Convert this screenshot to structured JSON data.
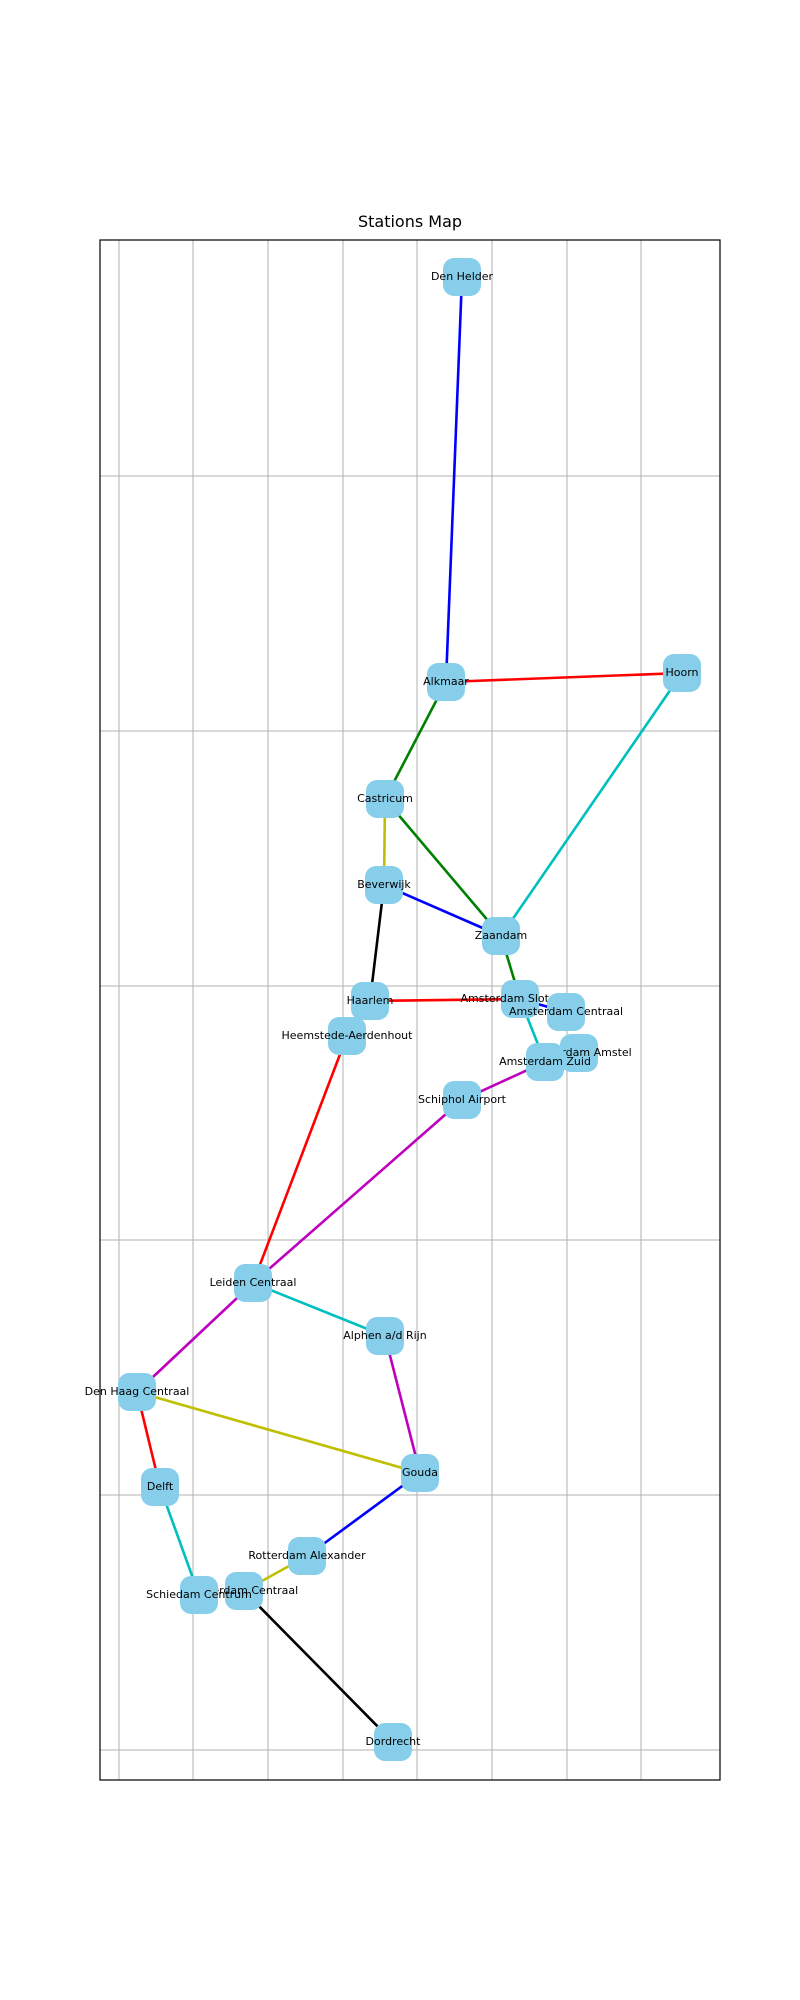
{
  "title": "Stations Map",
  "style": {
    "node_color": "#87CEEB",
    "grid": true
  },
  "line_colors": {
    "blue": "#0000FF",
    "red": "#FF0000",
    "green": "#008000",
    "cyan": "#00BFBF",
    "yellow": "#BFBF00",
    "black": "#000000",
    "magenta": "#BF00BF"
  },
  "stations": [
    {
      "id": "den_helder",
      "name": "Den Helder"
    },
    {
      "id": "alkmaar",
      "name": "Alkmaar"
    },
    {
      "id": "hoorn",
      "name": "Hoorn"
    },
    {
      "id": "castricum",
      "name": "Castricum"
    },
    {
      "id": "beverwijk",
      "name": "Beverwijk"
    },
    {
      "id": "zaandam",
      "name": "Zaandam"
    },
    {
      "id": "haarlem",
      "name": "Haarlem"
    },
    {
      "id": "ams_sloterdijk",
      "name": "Amsterdam Sloterdijk"
    },
    {
      "id": "ams_centraal",
      "name": "Amsterdam Centraal"
    },
    {
      "id": "heemstede",
      "name": "Heemstede-Aerdenhout"
    },
    {
      "id": "ams_amstel",
      "name": "Amsterdam Amstel"
    },
    {
      "id": "ams_zuid",
      "name": "Amsterdam Zuid"
    },
    {
      "id": "schiphol",
      "name": "Schiphol Airport"
    },
    {
      "id": "leiden",
      "name": "Leiden Centraal"
    },
    {
      "id": "alphen",
      "name": "Alphen a/d Rijn"
    },
    {
      "id": "den_haag",
      "name": "Den Haag Centraal"
    },
    {
      "id": "gouda",
      "name": "Gouda"
    },
    {
      "id": "delft",
      "name": "Delft"
    },
    {
      "id": "rotterdam_alexander",
      "name": "Rotterdam Alexander"
    },
    {
      "id": "rotterdam_centraal",
      "name": "Rotterdam Centraal"
    },
    {
      "id": "schiedam",
      "name": "Schiedam Centrum"
    },
    {
      "id": "dordrecht",
      "name": "Dordrecht"
    }
  ],
  "connections": [
    {
      "from": "den_helder",
      "to": "alkmaar",
      "color": "blue"
    },
    {
      "from": "alkmaar",
      "to": "hoorn",
      "color": "red"
    },
    {
      "from": "alkmaar",
      "to": "castricum",
      "color": "green"
    },
    {
      "from": "hoorn",
      "to": "zaandam",
      "color": "cyan"
    },
    {
      "from": "castricum",
      "to": "zaandam",
      "color": "green"
    },
    {
      "from": "castricum",
      "to": "beverwijk",
      "color": "yellow"
    },
    {
      "from": "beverwijk",
      "to": "zaandam",
      "color": "blue"
    },
    {
      "from": "beverwijk",
      "to": "haarlem",
      "color": "black"
    },
    {
      "from": "zaandam",
      "to": "ams_sloterdijk",
      "color": "green"
    },
    {
      "from": "haarlem",
      "to": "ams_sloterdijk",
      "color": "red"
    },
    {
      "from": "ams_sloterdijk",
      "to": "ams_centraal",
      "color": "blue"
    },
    {
      "from": "ams_sloterdijk",
      "to": "ams_zuid",
      "color": "cyan"
    },
    {
      "from": "ams_zuid",
      "to": "ams_amstel",
      "color": "cyan"
    },
    {
      "from": "ams_zuid",
      "to": "schiphol",
      "color": "magenta"
    },
    {
      "from": "schiphol",
      "to": "leiden",
      "color": "magenta"
    },
    {
      "from": "heemstede",
      "to": "leiden",
      "color": "red"
    },
    {
      "from": "leiden",
      "to": "alphen",
      "color": "cyan"
    },
    {
      "from": "leiden",
      "to": "den_haag",
      "color": "magenta"
    },
    {
      "from": "alphen",
      "to": "gouda",
      "color": "magenta"
    },
    {
      "from": "den_haag",
      "to": "gouda",
      "color": "yellow"
    },
    {
      "from": "den_haag",
      "to": "delft",
      "color": "red"
    },
    {
      "from": "delft",
      "to": "schiedam",
      "color": "cyan"
    },
    {
      "from": "gouda",
      "to": "rotterdam_alexander",
      "color": "blue"
    },
    {
      "from": "rotterdam_alexander",
      "to": "rotterdam_centraal",
      "color": "yellow"
    },
    {
      "from": "rotterdam_centraal",
      "to": "dordrecht",
      "color": "black"
    }
  ]
}
